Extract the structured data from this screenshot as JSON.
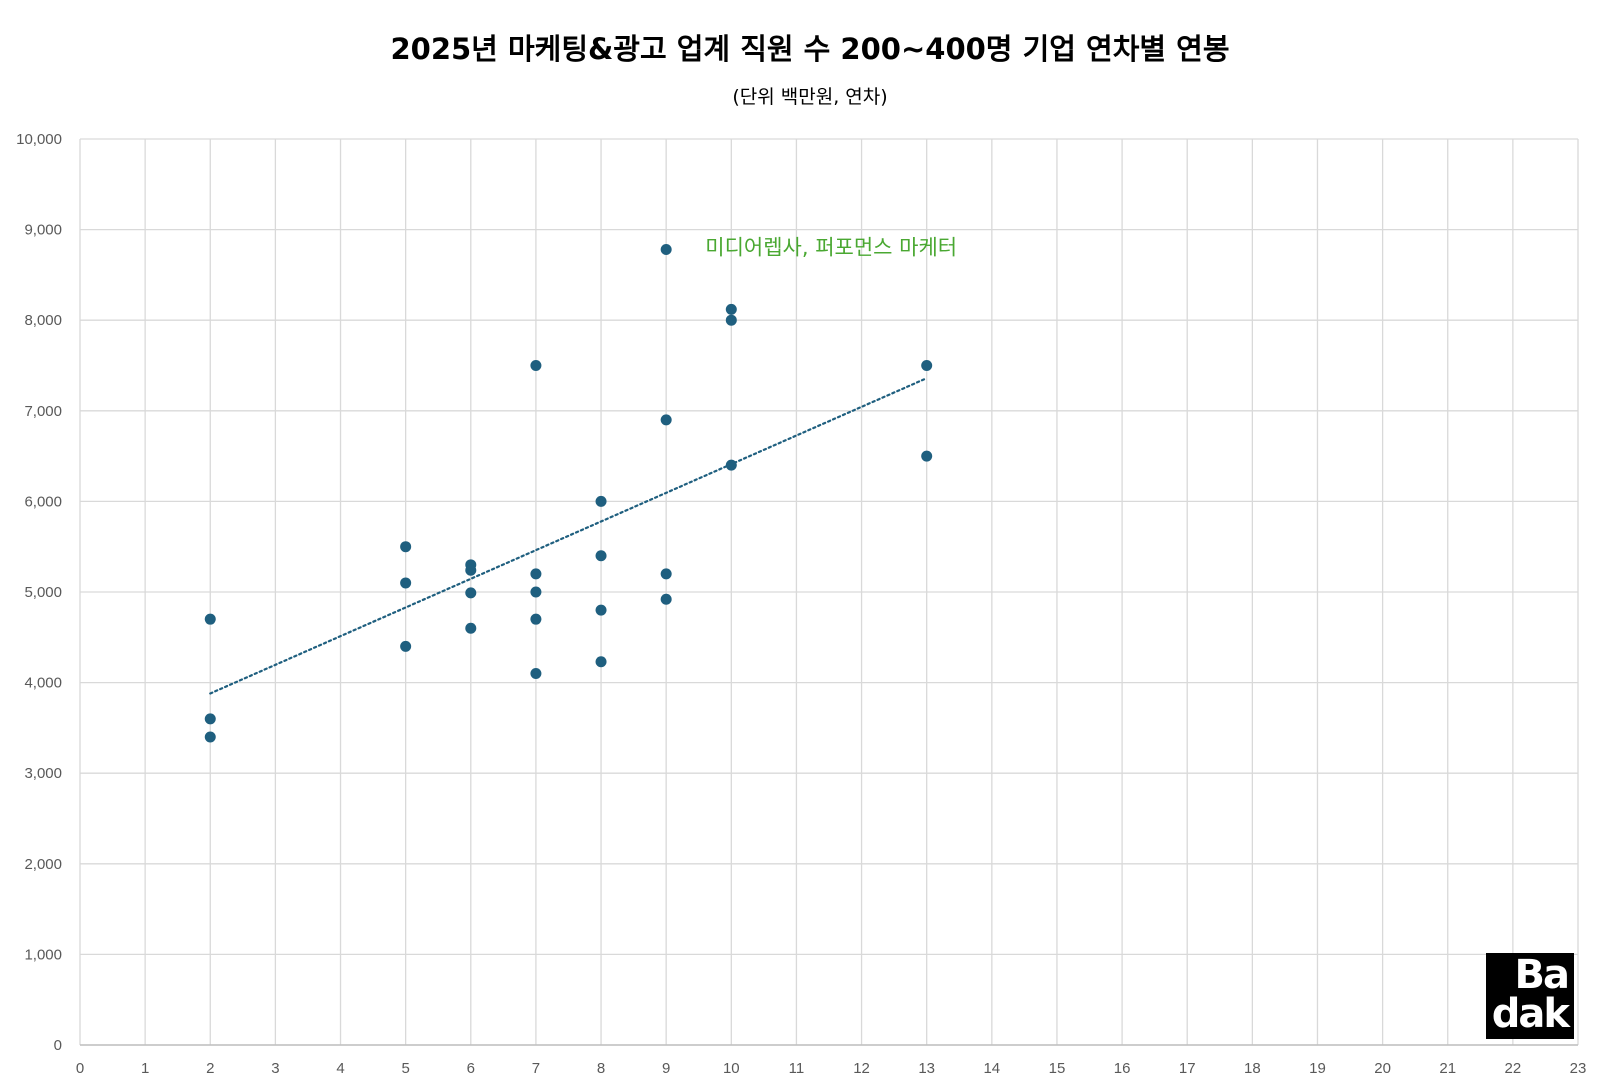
{
  "chart_data": {
    "type": "scatter",
    "title": "2025년 마케팅&광고 업계 직원 수 200~400명 기업 연차별 연봉",
    "subtitle": "(단위 백만원, 연차)",
    "xlim": [
      0,
      23
    ],
    "ylim": [
      0,
      10000
    ],
    "x_ticks": [
      0,
      1,
      2,
      3,
      4,
      5,
      6,
      7,
      8,
      9,
      10,
      11,
      12,
      13,
      14,
      15,
      16,
      17,
      18,
      19,
      20,
      21,
      22,
      23
    ],
    "y_ticks": [
      0,
      1000,
      2000,
      3000,
      4000,
      5000,
      6000,
      7000,
      8000,
      9000,
      10000
    ],
    "y_tick_labels": [
      "0",
      "1,000",
      "2,000",
      "3,000",
      "4,000",
      "5,000",
      "6,000",
      "7,000",
      "8,000",
      "9,000",
      "10,000"
    ],
    "grid": true,
    "colors": {
      "point": "#1f5f7f",
      "trend": "#1f5f7f",
      "grid": "#d9d9d9",
      "annotation": "#4aa832"
    },
    "points": [
      {
        "x": 2,
        "y": 4700
      },
      {
        "x": 2,
        "y": 3600
      },
      {
        "x": 2,
        "y": 3400
      },
      {
        "x": 5,
        "y": 5500
      },
      {
        "x": 5,
        "y": 5100
      },
      {
        "x": 5,
        "y": 4400
      },
      {
        "x": 6,
        "y": 5300
      },
      {
        "x": 6,
        "y": 5240
      },
      {
        "x": 6,
        "y": 4990
      },
      {
        "x": 6,
        "y": 4600
      },
      {
        "x": 7,
        "y": 7500
      },
      {
        "x": 7,
        "y": 5200
      },
      {
        "x": 7,
        "y": 5000
      },
      {
        "x": 7,
        "y": 4700
      },
      {
        "x": 7,
        "y": 4100
      },
      {
        "x": 8,
        "y": 6000
      },
      {
        "x": 8,
        "y": 5400
      },
      {
        "x": 8,
        "y": 4800
      },
      {
        "x": 8,
        "y": 4230
      },
      {
        "x": 9,
        "y": 8780
      },
      {
        "x": 9,
        "y": 6900
      },
      {
        "x": 9,
        "y": 5200
      },
      {
        "x": 9,
        "y": 4920
      },
      {
        "x": 10,
        "y": 8120
      },
      {
        "x": 10,
        "y": 8000
      },
      {
        "x": 10,
        "y": 6400
      },
      {
        "x": 13,
        "y": 7500
      },
      {
        "x": 13,
        "y": 6500
      }
    ],
    "trendline": {
      "style": "dotted",
      "x": [
        2,
        13
      ],
      "y": [
        3880,
        7360
      ]
    },
    "annotations": [
      {
        "text": "미디어렙사, 퍼포먼스 마케터",
        "x": 9.6,
        "y": 8800
      }
    ]
  },
  "logo": {
    "line1": "Ba",
    "line2": "dak"
  }
}
